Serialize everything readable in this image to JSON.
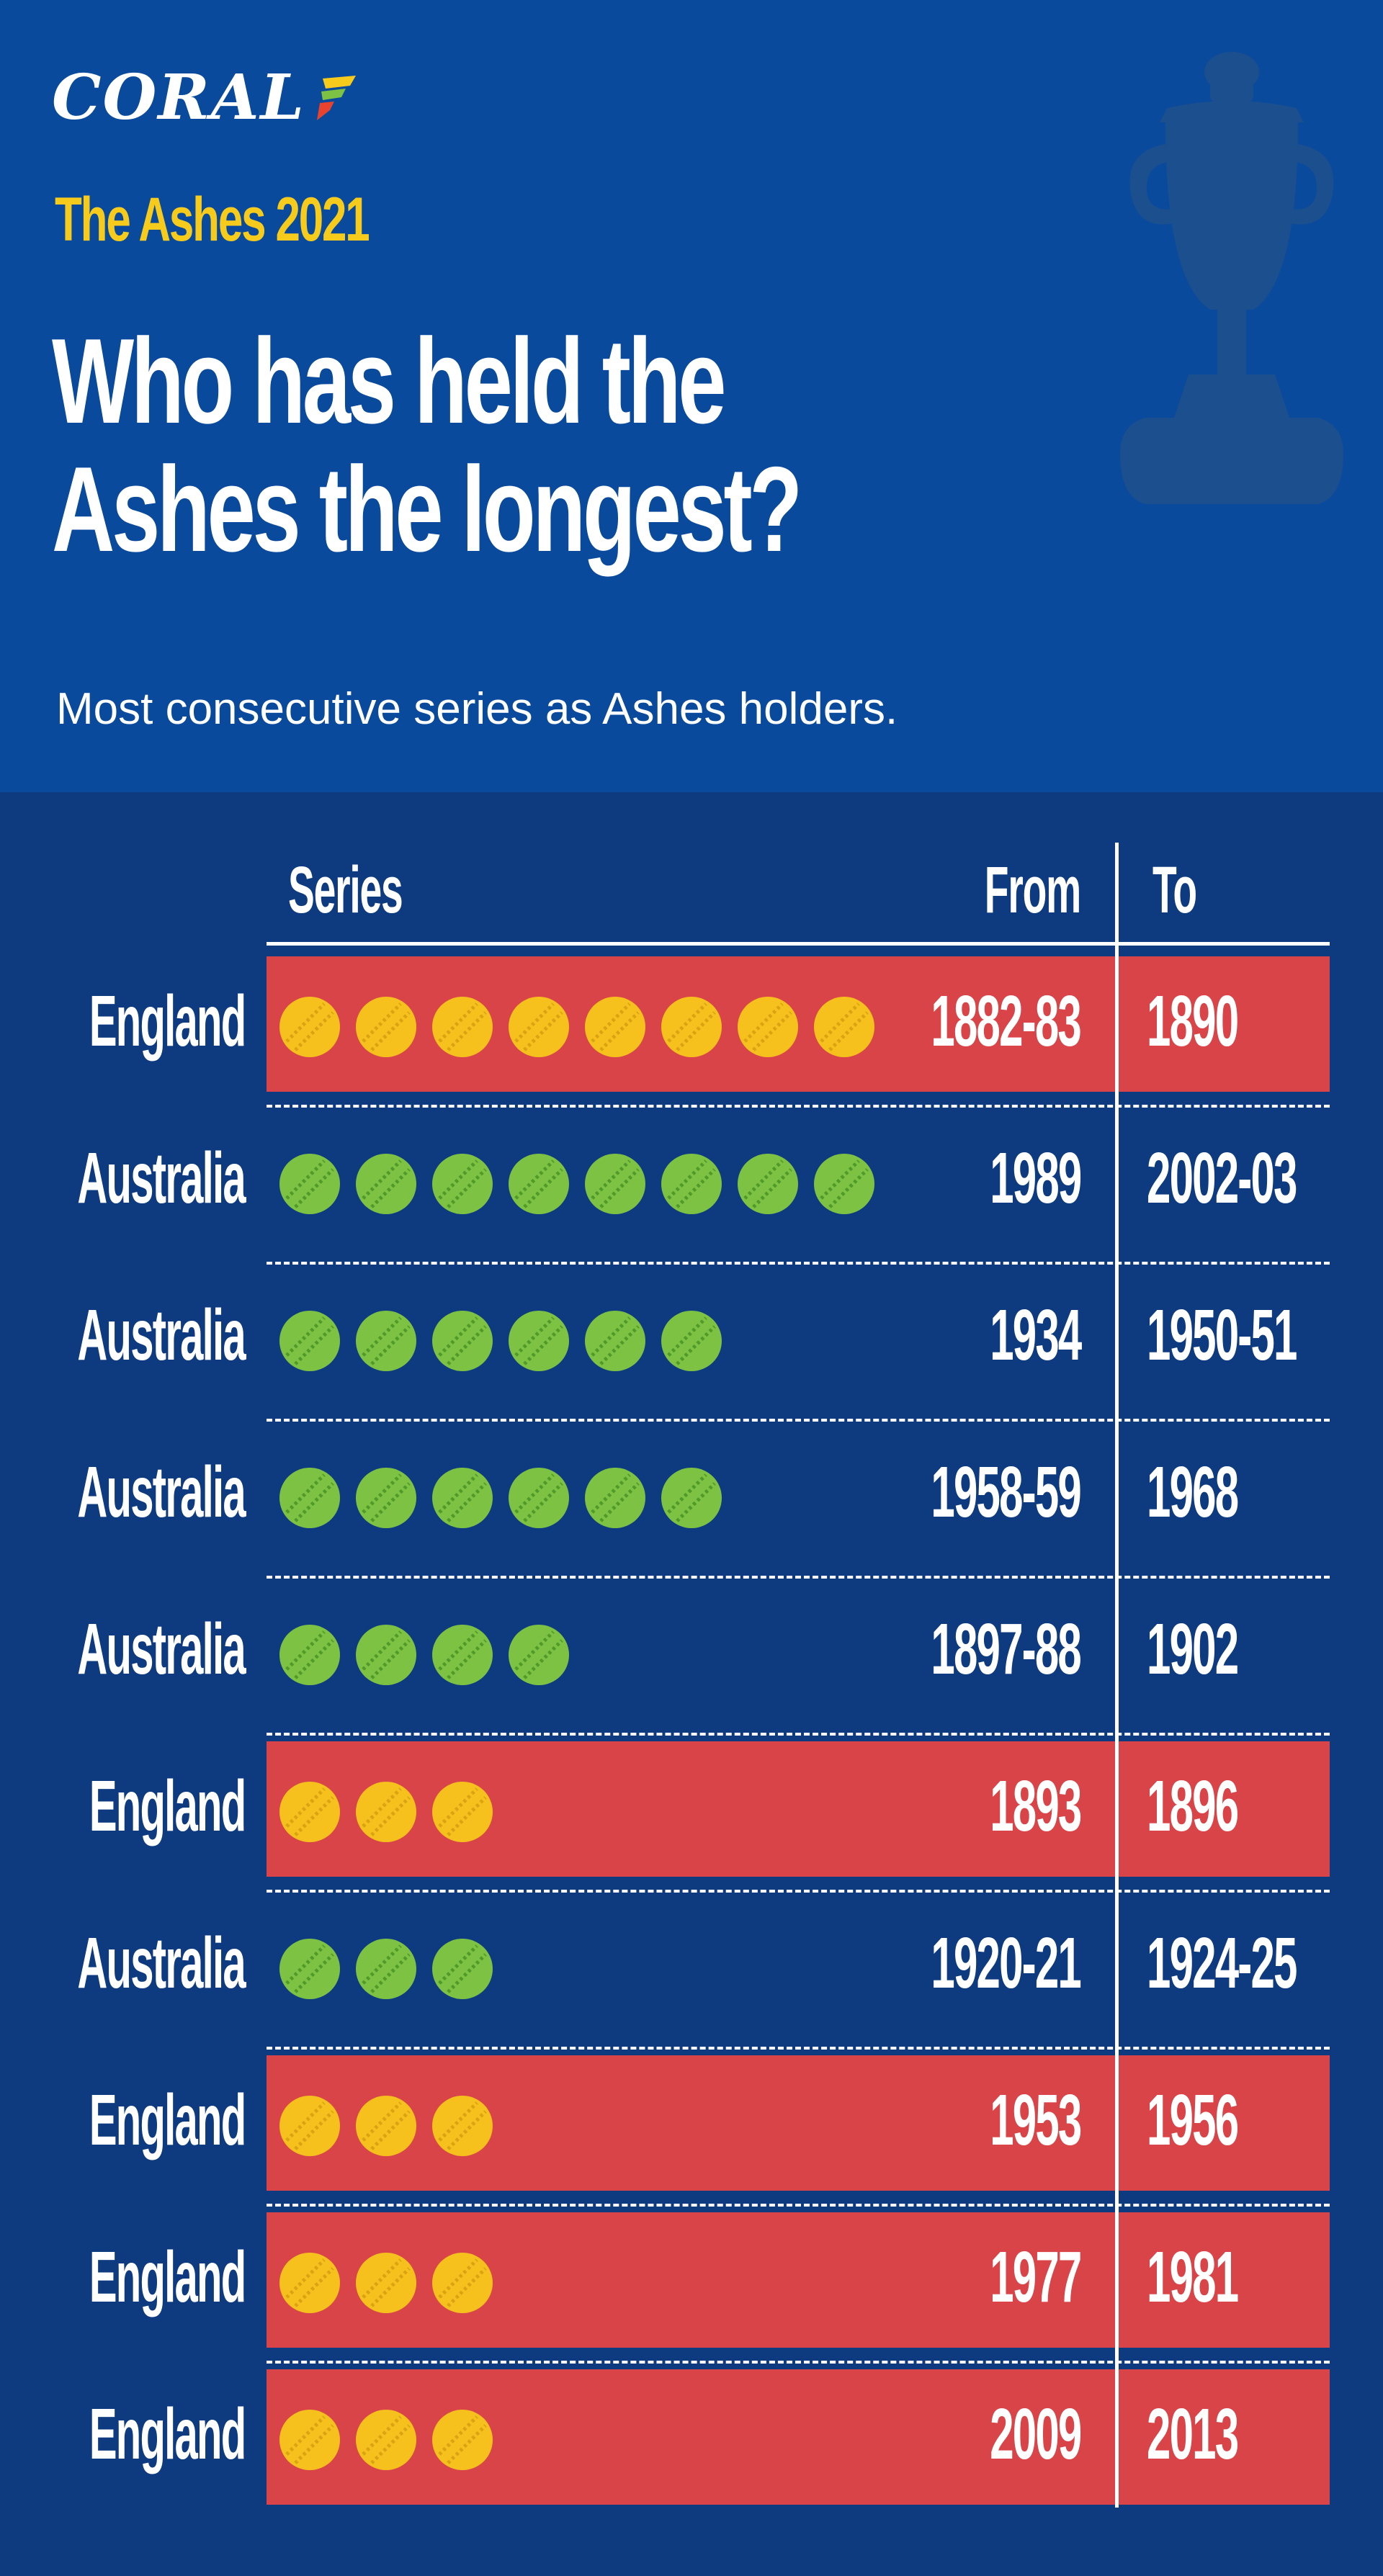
{
  "brand": {
    "name": "CORAL"
  },
  "header": {
    "kicker": "The Ashes 2021",
    "title_line1": "Who has held the",
    "title_line2": "Ashes the longest?",
    "subtitle": "Most consecutive series as Ashes holders."
  },
  "colors": {
    "england": "#d94448",
    "england_ball": "#f6c11c",
    "australia_ball": "#7dc242",
    "background": "#0e3b80",
    "header_bg": "#0a4a9d",
    "kicker": "#f6cb1c"
  },
  "icons": [
    "coral-logo",
    "trophy-icon",
    "cricket-ball-icon"
  ],
  "chart_data": {
    "type": "table",
    "columns": [
      "Series",
      "From",
      "To"
    ],
    "rows": [
      {
        "team": "England",
        "series": 8,
        "from": "1882-83",
        "to": "1890"
      },
      {
        "team": "Australia",
        "series": 8,
        "from": "1989",
        "to": "2002-03"
      },
      {
        "team": "Australia",
        "series": 6,
        "from": "1934",
        "to": "1950-51"
      },
      {
        "team": "Australia",
        "series": 6,
        "from": "1958-59",
        "to": "1968"
      },
      {
        "team": "Australia",
        "series": 4,
        "from": "1897-88",
        "to": "1902"
      },
      {
        "team": "England",
        "series": 3,
        "from": "1893",
        "to": "1896"
      },
      {
        "team": "Australia",
        "series": 3,
        "from": "1920-21",
        "to": "1924-25"
      },
      {
        "team": "England",
        "series": 3,
        "from": "1953",
        "to": "1956"
      },
      {
        "team": "England",
        "series": 3,
        "from": "1977",
        "to": "1981"
      },
      {
        "team": "England",
        "series": 3,
        "from": "2009",
        "to": "2013"
      }
    ]
  }
}
